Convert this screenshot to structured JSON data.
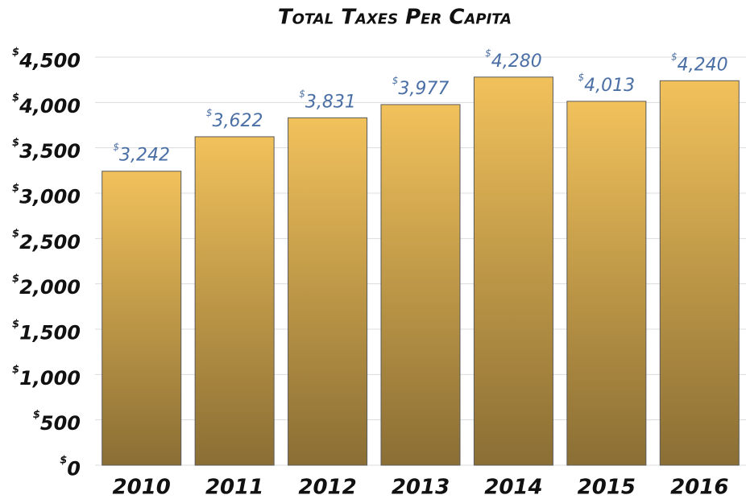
{
  "chart_data": {
    "type": "bar",
    "title": "Total Taxes Per Capita",
    "categories": [
      "2010",
      "2011",
      "2012",
      "2013",
      "2014",
      "2015",
      "2016"
    ],
    "values": [
      3242,
      3622,
      3831,
      3977,
      4280,
      4013,
      4240
    ],
    "value_labels": [
      "$3,242",
      "$3,622",
      "$3,831",
      "$3,977",
      "$4,280",
      "$4,013",
      "$4,240"
    ],
    "color": "#c9a24a",
    "ylim": [
      0,
      4500
    ],
    "yticks": [
      {
        "value": 0,
        "label": "$0"
      },
      {
        "value": 500,
        "label": "$500"
      },
      {
        "value": 1000,
        "label": "$1,000"
      },
      {
        "value": 1500,
        "label": "$1,500"
      },
      {
        "value": 2000,
        "label": "$2,000"
      },
      {
        "value": 2500,
        "label": "$2,500"
      },
      {
        "value": 3000,
        "label": "$3,000"
      },
      {
        "value": 3500,
        "label": "$3,500"
      },
      {
        "value": 4000,
        "label": "$4,000"
      },
      {
        "value": 4500,
        "label": "$4,500"
      }
    ],
    "grid": true
  }
}
